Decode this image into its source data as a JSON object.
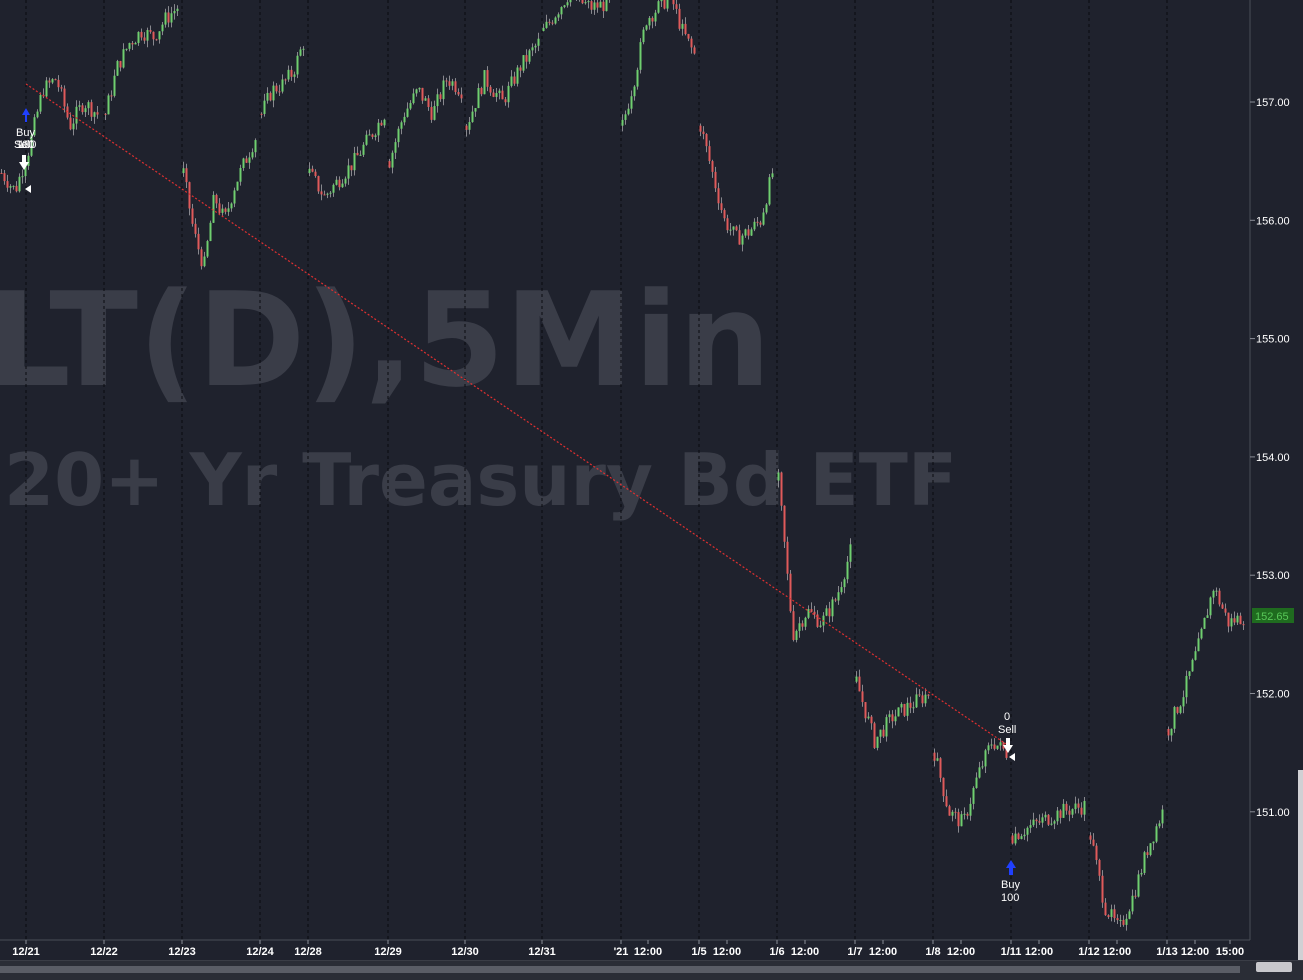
{
  "watermark": {
    "symbol": "LT(D),5Min",
    "name": "20+ Yr Treasury Bd ETF"
  },
  "price_axis": {
    "labels": [
      "157.00",
      "156.00",
      "155.00",
      "154.00",
      "153.00",
      "152.00",
      "151.00"
    ],
    "current_price": "152.65"
  },
  "time_axis": {
    "labels": [
      "12/21",
      "12/22",
      "12/23",
      "12/24",
      "12/28",
      "12/29",
      "12/30",
      "12/31",
      "'21",
      "12:00",
      "1/5",
      "12:00",
      "1/6",
      "12:00",
      "1/7",
      "12:00",
      "1/8",
      "12:00",
      "1/11",
      "12:00",
      "1/12",
      "12:00",
      "1/13",
      "12:00",
      "15:00"
    ]
  },
  "trades": [
    {
      "label": "Buy",
      "qty": "100"
    },
    {
      "label": "Sell",
      "qty": "100"
    },
    {
      "label": "Sell",
      "qty": "0"
    },
    {
      "label": "Buy",
      "qty": "100"
    }
  ],
  "colors": {
    "background": "#1f222d",
    "up": "#6fcf6f",
    "down": "#e05a5a",
    "trendline": "#e03030",
    "current_price_bg": "#1f6b1f"
  },
  "chart_data": {
    "type": "candlestick",
    "title": "",
    "ylim": [
      150.0,
      157.9
    ],
    "segments": [
      {
        "x": "12/21",
        "close_path": [
          156.4,
          156.25,
          156.6,
          157.1,
          157.2,
          156.8,
          157.0,
          156.9
        ]
      },
      {
        "x": "12/22",
        "close_path": [
          156.9,
          157.3,
          157.5,
          157.6,
          157.55,
          157.7,
          157.8
        ]
      },
      {
        "x": "12/23",
        "close_path": [
          156.4,
          155.9,
          155.6,
          156.2,
          156.0,
          156.3,
          156.5,
          156.7
        ]
      },
      {
        "x": "12/24",
        "close_path": [
          156.9,
          157.1,
          157.15,
          157.25,
          157.5
        ]
      },
      {
        "x": "12/28",
        "close_path": [
          156.4,
          156.2,
          156.35,
          156.5,
          156.7,
          156.9
        ]
      },
      {
        "x": "12/29",
        "close_path": [
          156.5,
          156.9,
          157.1,
          156.9,
          157.2,
          157.1
        ]
      },
      {
        "x": "12/30",
        "close_path": [
          156.8,
          157.2,
          157.0,
          157.3,
          157.5
        ]
      },
      {
        "x": "12/31",
        "close_path": [
          157.6,
          157.9,
          157.8,
          157.85
        ]
      },
      {
        "x": "'21",
        "close_path": [
          156.8,
          157.2,
          157.7,
          157.8,
          157.9,
          157.6,
          157.4
        ]
      },
      {
        "x": "1/5",
        "close_path": [
          156.8,
          156.4,
          156.0,
          155.85,
          155.9,
          156.0,
          156.4
        ]
      },
      {
        "x": "1/6",
        "close_path": [
          153.8,
          152.5,
          152.7,
          152.6,
          152.8,
          153.2
        ]
      },
      {
        "x": "1/7",
        "close_path": [
          152.1,
          151.6,
          151.8,
          151.9,
          152.0
        ]
      },
      {
        "x": "1/8",
        "close_path": [
          151.5,
          151.0,
          150.9,
          151.3,
          151.6,
          151.5
        ]
      },
      {
        "x": "1/11",
        "close_path": [
          150.8,
          150.9,
          151.0,
          151.05
        ]
      },
      {
        "x": "1/12",
        "close_path": [
          150.8,
          150.2,
          150.0,
          150.3,
          150.7,
          151.0
        ]
      },
      {
        "x": "1/13",
        "close_path": [
          151.7,
          152.0,
          152.4,
          152.9,
          152.6,
          152.65
        ]
      }
    ],
    "trendline": {
      "from": [
        "12/21",
        157.2
      ],
      "to": [
        "1/11",
        151.6
      ],
      "style": "dotted"
    }
  }
}
